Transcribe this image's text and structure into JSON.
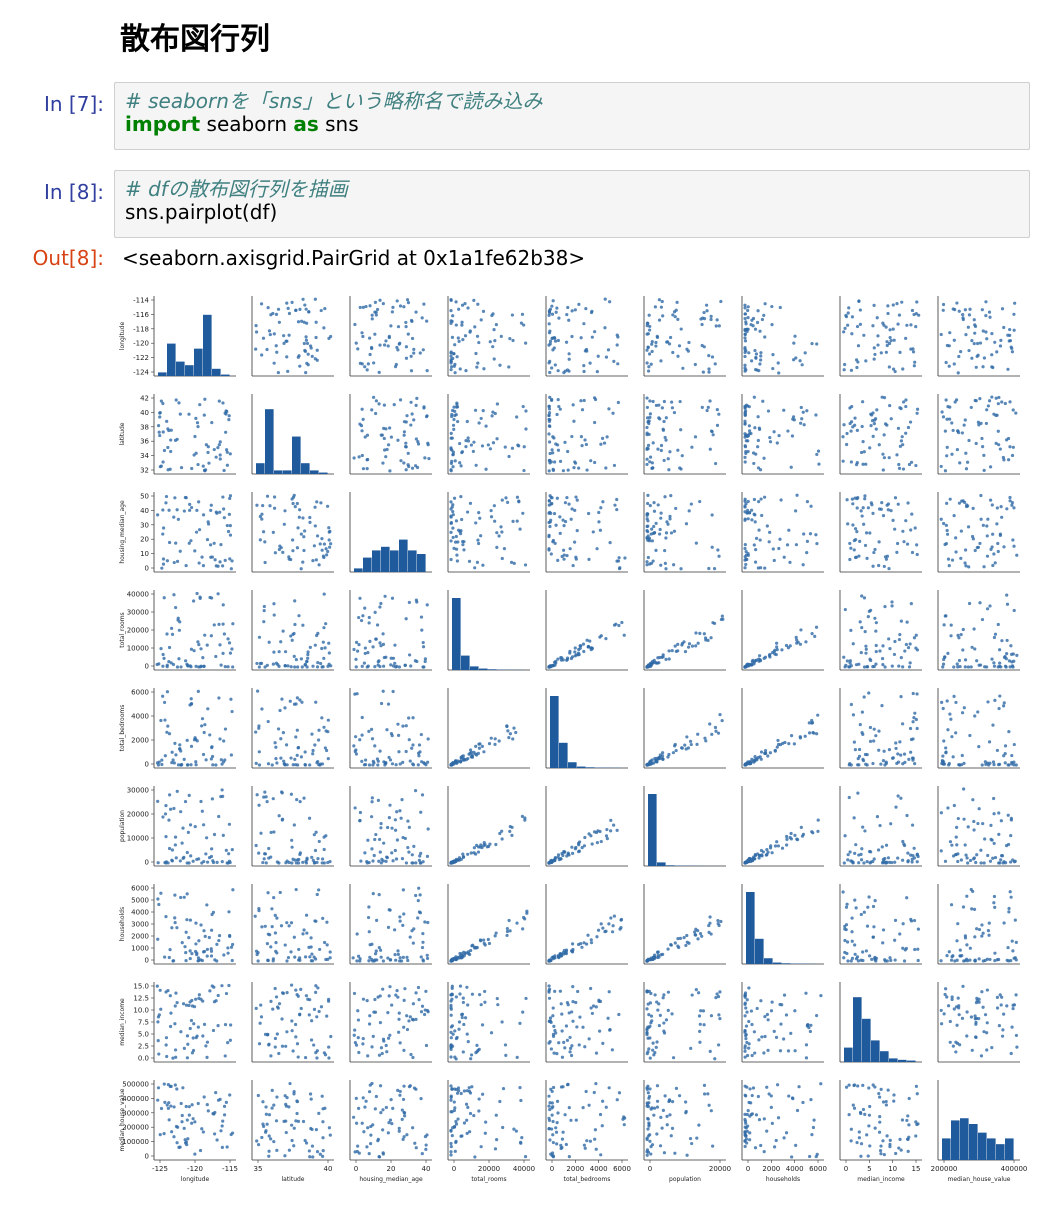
{
  "heading": "散布図行列",
  "cells": [
    {
      "prompt": "In [7]:",
      "comment": "# seabornを「sns」という略称名で読み込み",
      "code": {
        "kw1": "import",
        "mod": " seaborn ",
        "kw2": "as",
        "alias": " sns"
      }
    },
    {
      "prompt": "In [8]:",
      "comment": "# dfの散布図行列を描画",
      "code_line": "sns.pairplot(df)"
    }
  ],
  "output": {
    "prompt": "Out[8]:",
    "text": "<seaborn.axisgrid.PairGrid at 0x1a1fe62b38>"
  },
  "chart_data": {
    "type": "scatter",
    "kind": "pairplot",
    "variables": [
      "longitude",
      "latitude",
      "housing_median_age",
      "total_rooms",
      "total_bedrooms",
      "population",
      "households",
      "median_income",
      "median_house_value"
    ],
    "ranges": [
      [
        -125,
        -114
      ],
      [
        32,
        42
      ],
      [
        0,
        52
      ],
      [
        0,
        40000
      ],
      [
        0,
        6500
      ],
      [
        0,
        36000
      ],
      [
        0,
        6100
      ],
      [
        0,
        15.5
      ],
      [
        0,
        500001
      ]
    ],
    "y_ticks": [
      [
        "-114",
        "-116",
        "-118",
        "-120",
        "-122",
        "-124"
      ],
      [
        "42",
        "40",
        "38",
        "36",
        "34",
        "32"
      ],
      [
        "50",
        "40",
        "30",
        "20",
        "10",
        "0"
      ],
      [
        "40000",
        "30000",
        "20000",
        "10000",
        "0"
      ],
      [
        "6000",
        "4000",
        "2000",
        "0"
      ],
      [
        "30000",
        "20000",
        "10000",
        "0"
      ],
      [
        "6000",
        "5000",
        "4000",
        "3000",
        "2000",
        "1000",
        "0"
      ],
      [
        "15.0",
        "12.5",
        "10.0",
        "7.5",
        "5.0",
        "2.5",
        "0.0"
      ],
      [
        "500000",
        "400000",
        "300000",
        "200000",
        "100000",
        "0"
      ]
    ],
    "x_ticks": [
      [
        "-125",
        "-120",
        "-115"
      ],
      [
        "35",
        "40"
      ],
      [
        "0",
        "20",
        "40"
      ],
      [
        "0",
        "20000",
        "40000"
      ],
      [
        "0",
        "2000",
        "4000",
        "6000"
      ],
      [
        "0",
        "20000"
      ],
      [
        "0",
        "2000",
        "4000",
        "6000"
      ],
      [
        "0",
        "5",
        "10",
        "15"
      ],
      [
        "200000",
        "400000"
      ]
    ],
    "diagonal": "histogram",
    "off_diagonal": "scatter",
    "point_color": "#2f6aa6",
    "bar_color": "#1f5a9c",
    "grid": false,
    "legend": "none"
  }
}
